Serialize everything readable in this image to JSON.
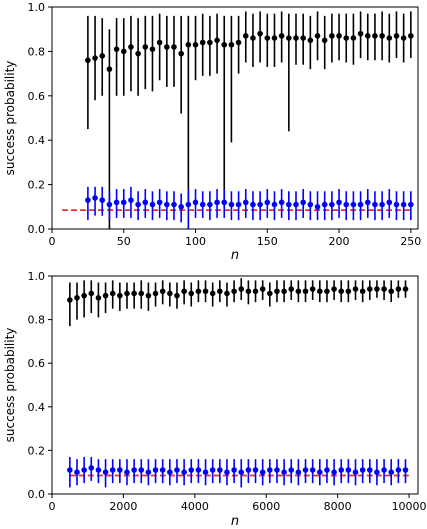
{
  "chart_data": [
    {
      "type": "scatter",
      "xlabel": "n",
      "ylabel": "success probability",
      "xlim": [
        0,
        255
      ],
      "ylim": [
        0,
        1.0
      ],
      "xticks": [
        0,
        50,
        100,
        150,
        200,
        250
      ],
      "yticks": [
        0.0,
        0.2,
        0.4,
        0.6,
        0.8,
        1.0
      ],
      "x": [
        25,
        30,
        35,
        40,
        45,
        50,
        55,
        60,
        65,
        70,
        75,
        80,
        85,
        90,
        95,
        100,
        105,
        110,
        115,
        120,
        125,
        130,
        135,
        140,
        145,
        150,
        155,
        160,
        165,
        170,
        175,
        180,
        185,
        190,
        195,
        200,
        205,
        210,
        215,
        220,
        225,
        230,
        235,
        240,
        245,
        250
      ],
      "series": [
        {
          "color": "#000000",
          "values": [
            0.76,
            0.77,
            0.78,
            0.72,
            0.81,
            0.8,
            0.82,
            0.79,
            0.82,
            0.81,
            0.84,
            0.82,
            0.82,
            0.79,
            0.83,
            0.83,
            0.84,
            0.84,
            0.85,
            0.83,
            0.83,
            0.84,
            0.87,
            0.86,
            0.88,
            0.86,
            0.86,
            0.87,
            0.86,
            0.86,
            0.86,
            0.85,
            0.87,
            0.85,
            0.87,
            0.87,
            0.86,
            0.86,
            0.88,
            0.87,
            0.87,
            0.87,
            0.86,
            0.87,
            0.86,
            0.87
          ],
          "err_low": [
            0.45,
            0.58,
            0.6,
            0.0,
            0.6,
            0.6,
            0.62,
            0.6,
            0.63,
            0.62,
            0.67,
            0.64,
            0.64,
            0.52,
            0.1,
            0.67,
            0.69,
            0.69,
            0.7,
            0.1,
            0.39,
            0.7,
            0.75,
            0.73,
            0.75,
            0.73,
            0.73,
            0.75,
            0.44,
            0.74,
            0.74,
            0.72,
            0.76,
            0.72,
            0.75,
            0.76,
            0.75,
            0.74,
            0.77,
            0.76,
            0.76,
            0.76,
            0.75,
            0.77,
            0.75,
            0.77
          ],
          "err_high": [
            0.96,
            0.96,
            0.95,
            0.9,
            0.95,
            0.95,
            0.96,
            0.95,
            0.96,
            0.96,
            0.97,
            0.96,
            0.96,
            0.96,
            0.96,
            0.96,
            0.97,
            0.96,
            0.97,
            0.96,
            0.96,
            0.96,
            0.98,
            0.97,
            0.98,
            0.97,
            0.97,
            0.98,
            0.97,
            0.97,
            0.97,
            0.96,
            0.98,
            0.96,
            0.97,
            0.97,
            0.97,
            0.97,
            0.98,
            0.97,
            0.97,
            0.98,
            0.97,
            0.98,
            0.97,
            0.98
          ]
        },
        {
          "color": "#0000ff",
          "values": [
            0.13,
            0.14,
            0.13,
            0.11,
            0.12,
            0.12,
            0.13,
            0.11,
            0.12,
            0.11,
            0.12,
            0.11,
            0.11,
            0.1,
            0.11,
            0.12,
            0.11,
            0.11,
            0.12,
            0.12,
            0.11,
            0.11,
            0.12,
            0.11,
            0.11,
            0.12,
            0.11,
            0.12,
            0.11,
            0.11,
            0.12,
            0.11,
            0.1,
            0.11,
            0.11,
            0.12,
            0.11,
            0.11,
            0.11,
            0.12,
            0.11,
            0.11,
            0.12,
            0.11,
            0.11,
            0.11
          ],
          "err_low": [
            0.04,
            0.06,
            0.06,
            0.04,
            0.05,
            0.05,
            0.05,
            0.04,
            0.05,
            0.04,
            0.05,
            0.04,
            0.04,
            0.03,
            0.0,
            0.05,
            0.05,
            0.04,
            0.05,
            0.05,
            0.04,
            0.04,
            0.05,
            0.04,
            0.04,
            0.05,
            0.04,
            0.05,
            0.04,
            0.04,
            0.05,
            0.04,
            0.04,
            0.04,
            0.04,
            0.05,
            0.04,
            0.04,
            0.04,
            0.05,
            0.04,
            0.04,
            0.05,
            0.04,
            0.04,
            0.04
          ],
          "err_high": [
            0.19,
            0.19,
            0.19,
            0.17,
            0.18,
            0.18,
            0.19,
            0.17,
            0.18,
            0.17,
            0.18,
            0.17,
            0.17,
            0.16,
            0.18,
            0.18,
            0.17,
            0.17,
            0.18,
            0.18,
            0.17,
            0.17,
            0.18,
            0.17,
            0.17,
            0.18,
            0.17,
            0.18,
            0.17,
            0.17,
            0.18,
            0.17,
            0.17,
            0.17,
            0.17,
            0.18,
            0.17,
            0.17,
            0.17,
            0.18,
            0.17,
            0.17,
            0.18,
            0.17,
            0.17,
            0.17
          ]
        }
      ],
      "reference_line": {
        "y": 0.085,
        "x_range": [
          7,
          250
        ],
        "color": "#e8312b",
        "style": "dashed"
      }
    },
    {
      "type": "scatter",
      "xlabel": "n",
      "ylabel": "success probability",
      "xlim": [
        0,
        10250
      ],
      "ylim": [
        0,
        1.0
      ],
      "xticks": [
        0,
        2000,
        4000,
        6000,
        8000,
        10000
      ],
      "yticks": [
        0.0,
        0.2,
        0.4,
        0.6,
        0.8,
        1.0
      ],
      "x": [
        500,
        700,
        900,
        1100,
        1300,
        1500,
        1700,
        1900,
        2100,
        2300,
        2500,
        2700,
        2900,
        3100,
        3300,
        3500,
        3700,
        3900,
        4100,
        4300,
        4500,
        4700,
        4900,
        5100,
        5300,
        5500,
        5700,
        5900,
        6100,
        6300,
        6500,
        6700,
        6900,
        7100,
        7300,
        7500,
        7700,
        7900,
        8100,
        8300,
        8500,
        8700,
        8900,
        9100,
        9300,
        9500,
        9700,
        9900
      ],
      "series": [
        {
          "color": "#000000",
          "values": [
            0.89,
            0.9,
            0.91,
            0.92,
            0.9,
            0.91,
            0.92,
            0.91,
            0.92,
            0.92,
            0.92,
            0.91,
            0.92,
            0.93,
            0.92,
            0.91,
            0.93,
            0.92,
            0.93,
            0.93,
            0.92,
            0.93,
            0.92,
            0.93,
            0.94,
            0.93,
            0.93,
            0.94,
            0.92,
            0.93,
            0.93,
            0.94,
            0.93,
            0.93,
            0.94,
            0.93,
            0.93,
            0.94,
            0.93,
            0.93,
            0.94,
            0.93,
            0.94,
            0.94,
            0.94,
            0.93,
            0.94,
            0.94
          ],
          "err_low": [
            0.77,
            0.8,
            0.81,
            0.83,
            0.81,
            0.83,
            0.85,
            0.84,
            0.85,
            0.85,
            0.85,
            0.84,
            0.86,
            0.87,
            0.86,
            0.85,
            0.87,
            0.86,
            0.88,
            0.88,
            0.86,
            0.88,
            0.86,
            0.88,
            0.89,
            0.87,
            0.88,
            0.89,
            0.86,
            0.88,
            0.88,
            0.89,
            0.88,
            0.88,
            0.89,
            0.88,
            0.88,
            0.89,
            0.88,
            0.88,
            0.89,
            0.88,
            0.89,
            0.9,
            0.89,
            0.88,
            0.9,
            0.9
          ],
          "err_high": [
            0.97,
            0.97,
            0.98,
            0.98,
            0.97,
            0.97,
            0.98,
            0.97,
            0.97,
            0.97,
            0.98,
            0.97,
            0.97,
            0.98,
            0.97,
            0.97,
            0.98,
            0.97,
            0.98,
            0.98,
            0.97,
            0.98,
            0.97,
            0.98,
            0.99,
            0.98,
            0.98,
            0.98,
            0.97,
            0.98,
            0.98,
            0.98,
            0.98,
            0.98,
            0.98,
            0.98,
            0.98,
            0.98,
            0.98,
            0.98,
            0.98,
            0.98,
            0.98,
            0.98,
            0.98,
            0.98,
            0.98,
            0.98
          ]
        },
        {
          "color": "#0000ff",
          "values": [
            0.11,
            0.1,
            0.11,
            0.12,
            0.11,
            0.1,
            0.11,
            0.11,
            0.1,
            0.11,
            0.11,
            0.1,
            0.11,
            0.11,
            0.1,
            0.11,
            0.1,
            0.11,
            0.11,
            0.1,
            0.11,
            0.11,
            0.1,
            0.11,
            0.1,
            0.11,
            0.11,
            0.1,
            0.11,
            0.11,
            0.1,
            0.11,
            0.1,
            0.11,
            0.11,
            0.1,
            0.11,
            0.1,
            0.11,
            0.11,
            0.1,
            0.11,
            0.11,
            0.1,
            0.11,
            0.1,
            0.11,
            0.11
          ],
          "err_low": [
            0.03,
            0.04,
            0.05,
            0.06,
            0.05,
            0.03,
            0.05,
            0.05,
            0.04,
            0.05,
            0.05,
            0.04,
            0.05,
            0.05,
            0.04,
            0.05,
            0.04,
            0.05,
            0.05,
            0.04,
            0.05,
            0.05,
            0.04,
            0.05,
            0.03,
            0.05,
            0.05,
            0.04,
            0.05,
            0.05,
            0.04,
            0.05,
            0.04,
            0.05,
            0.05,
            0.04,
            0.05,
            0.04,
            0.05,
            0.05,
            0.04,
            0.05,
            0.05,
            0.04,
            0.05,
            0.04,
            0.05,
            0.05
          ],
          "err_high": [
            0.17,
            0.16,
            0.17,
            0.17,
            0.16,
            0.16,
            0.16,
            0.16,
            0.16,
            0.16,
            0.16,
            0.16,
            0.16,
            0.16,
            0.16,
            0.16,
            0.16,
            0.16,
            0.16,
            0.16,
            0.16,
            0.16,
            0.16,
            0.16,
            0.16,
            0.16,
            0.16,
            0.16,
            0.16,
            0.16,
            0.16,
            0.16,
            0.16,
            0.16,
            0.16,
            0.16,
            0.16,
            0.16,
            0.16,
            0.16,
            0.16,
            0.16,
            0.16,
            0.16,
            0.16,
            0.16,
            0.16,
            0.16
          ]
        }
      ],
      "reference_line": {
        "y": 0.085,
        "x_range": [
          500,
          10000
        ],
        "color": "#e8312b",
        "style": "dashed"
      }
    }
  ]
}
